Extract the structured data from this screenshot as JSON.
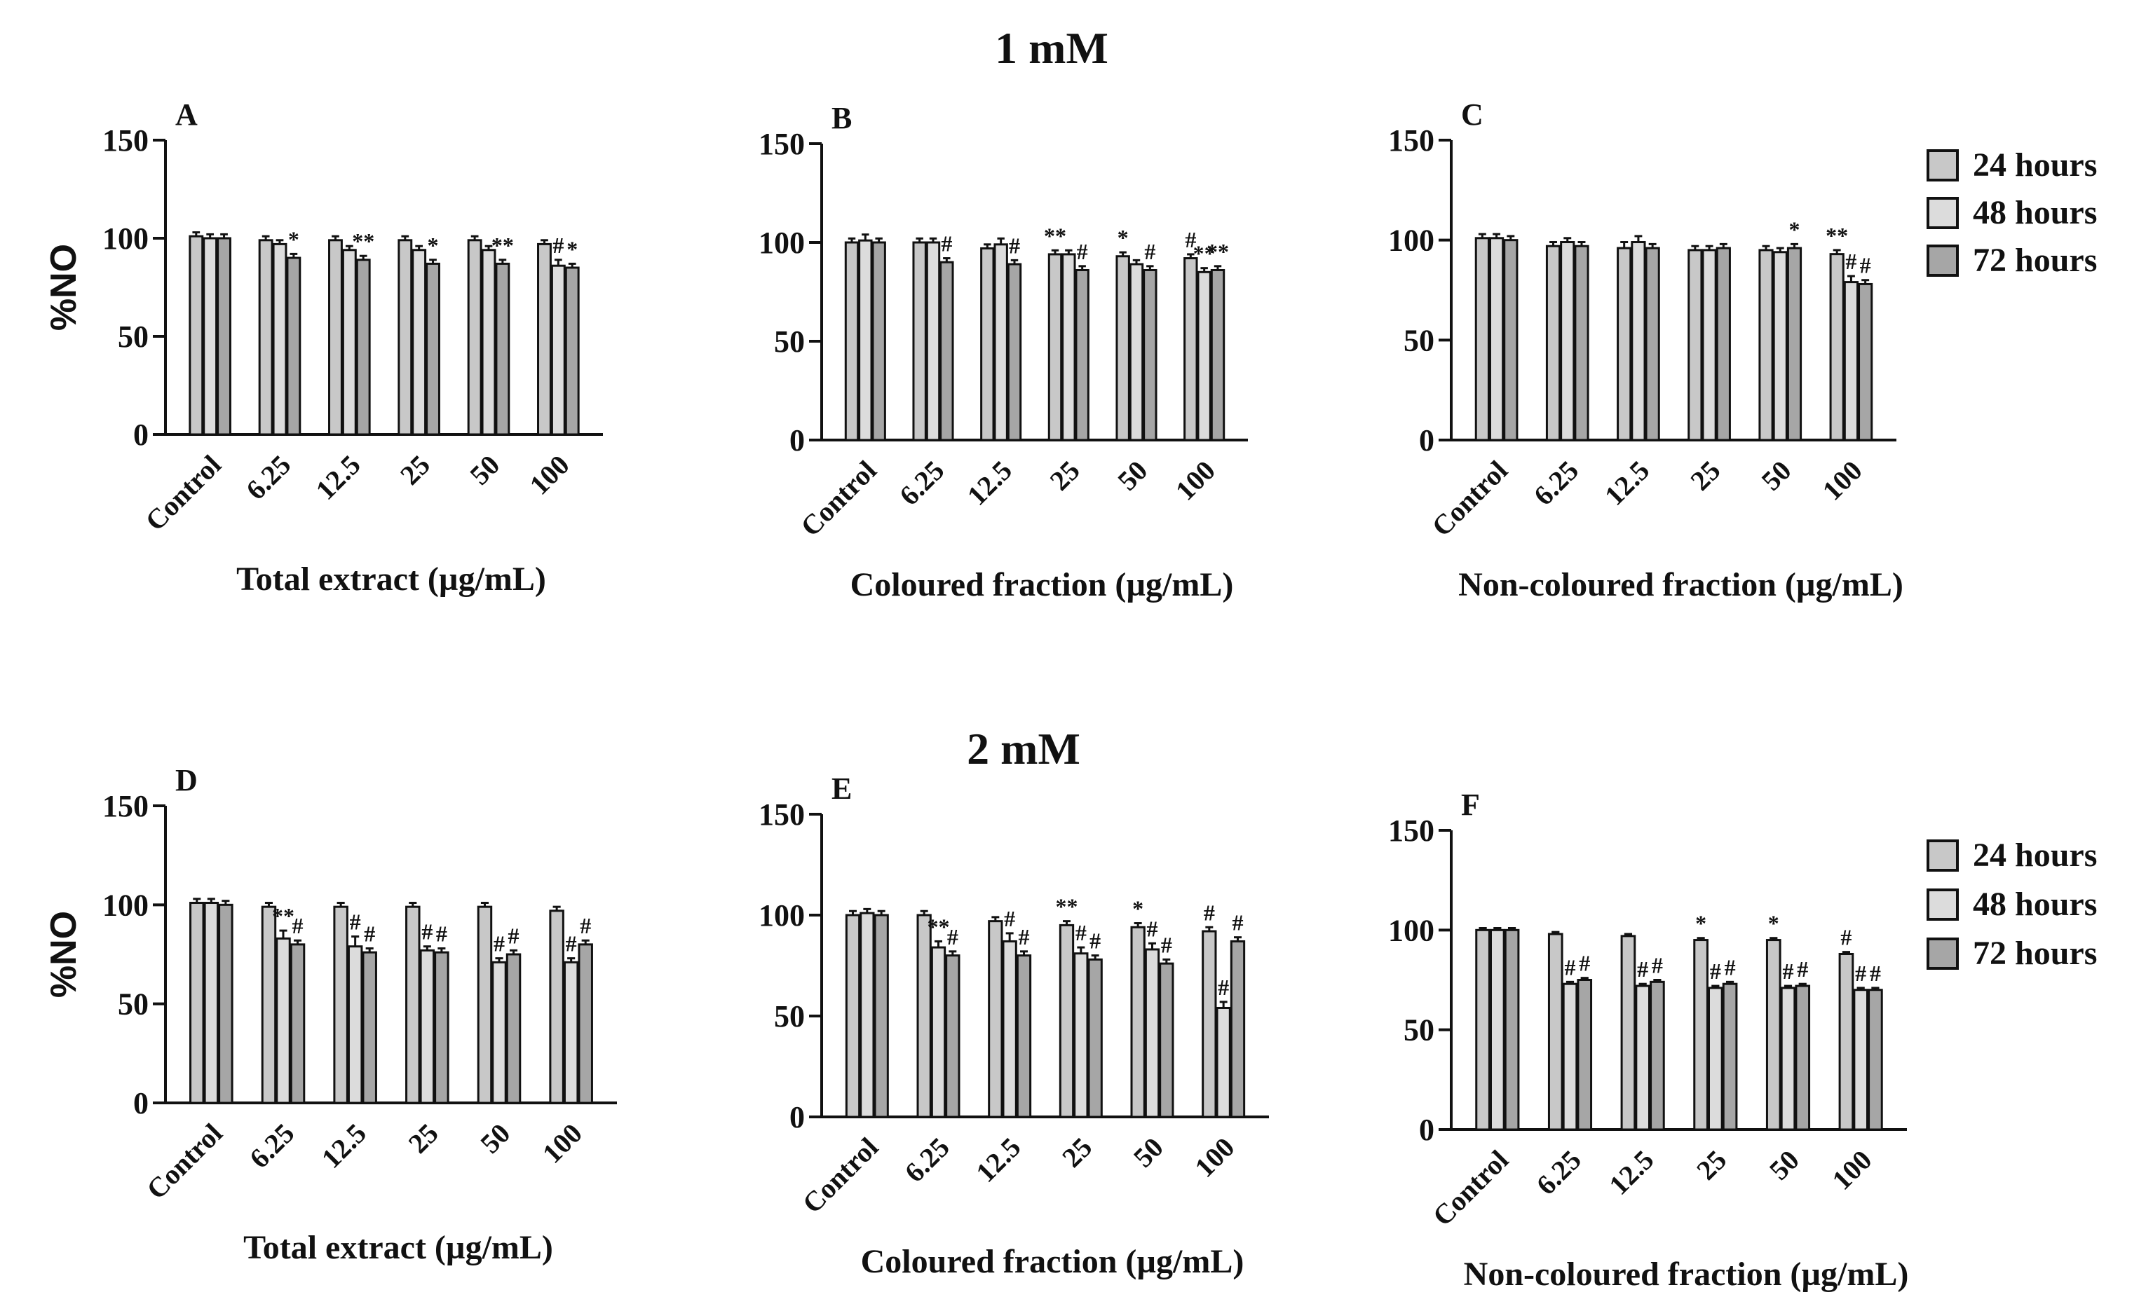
{
  "figure": {
    "group_titles": [
      "1 mM",
      "2 mM"
    ]
  },
  "legend": {
    "entries": [
      {
        "label": "24 hours",
        "color": "#c8c8c8"
      },
      {
        "label": "48 hours",
        "color": "#dcdcdc"
      },
      {
        "label": "72 hours",
        "color": "#a6a6a6"
      }
    ]
  },
  "chart_data": [
    {
      "panel": "A",
      "type": "bar",
      "xlabel": "Total extract (µg/mL)",
      "ylabel": "%NO",
      "ylim": [
        0,
        150
      ],
      "yticks": [
        0,
        50,
        100,
        150
      ],
      "categories": [
        "Control",
        "6.25",
        "12.5",
        "25",
        "50",
        "100"
      ],
      "series": [
        {
          "name": "24 hours",
          "values": [
            101,
            99,
            99,
            99,
            99,
            97
          ],
          "errors": [
            2,
            2,
            2,
            2,
            2,
            2
          ],
          "marks": [
            "",
            "",
            "",
            "",
            "",
            ""
          ]
        },
        {
          "name": "48 hours",
          "values": [
            100,
            97,
            94,
            94,
            94,
            86
          ],
          "errors": [
            2,
            2,
            2,
            2,
            2,
            3
          ],
          "marks": [
            "",
            "",
            "",
            "",
            "",
            "#"
          ]
        },
        {
          "name": "72 hours",
          "values": [
            100,
            90,
            89,
            87,
            87,
            85
          ],
          "errors": [
            2,
            2,
            2,
            2,
            2,
            2
          ],
          "marks": [
            "",
            "*",
            "**",
            "*",
            "**",
            "*"
          ]
        }
      ]
    },
    {
      "panel": "B",
      "type": "bar",
      "xlabel": "Coloured fraction (µg/mL)",
      "ylabel": "",
      "ylim": [
        0,
        150
      ],
      "yticks": [
        0,
        50,
        100,
        150
      ],
      "categories": [
        "Control",
        "6.25",
        "12.5",
        "25",
        "50",
        "100"
      ],
      "series": [
        {
          "name": "24 hours",
          "values": [
            100,
            100,
            97,
            94,
            93,
            92
          ],
          "errors": [
            2,
            2,
            2,
            2,
            2,
            2
          ],
          "marks": [
            "",
            "",
            "",
            "**",
            "*",
            "#"
          ]
        },
        {
          "name": "48 hours",
          "values": [
            101,
            100,
            99,
            94,
            89,
            85
          ],
          "errors": [
            3,
            2,
            3,
            2,
            2,
            2
          ],
          "marks": [
            "",
            "",
            "",
            "",
            "",
            "**"
          ]
        },
        {
          "name": "72 hours",
          "values": [
            100,
            90,
            89,
            86,
            86,
            86
          ],
          "errors": [
            2,
            2,
            2,
            2,
            2,
            2
          ],
          "marks": [
            "",
            "#",
            "#",
            "#",
            "#",
            "**"
          ]
        }
      ]
    },
    {
      "panel": "C",
      "type": "bar",
      "xlabel": "Non-coloured fraction (µg/mL)",
      "ylabel": "",
      "ylim": [
        0,
        150
      ],
      "yticks": [
        0,
        50,
        100,
        150
      ],
      "categories": [
        "Control",
        "6.25",
        "12.5",
        "25",
        "50",
        "100"
      ],
      "series": [
        {
          "name": "24 hours",
          "values": [
            101,
            97,
            96,
            95,
            95,
            93
          ],
          "errors": [
            2,
            2,
            3,
            2,
            2,
            2
          ],
          "marks": [
            "",
            "",
            "",
            "",
            "",
            "**"
          ]
        },
        {
          "name": "48 hours",
          "values": [
            101,
            99,
            99,
            95,
            94,
            79
          ],
          "errors": [
            2,
            2,
            3,
            2,
            2,
            3
          ],
          "marks": [
            "",
            "",
            "",
            "",
            "",
            "#"
          ]
        },
        {
          "name": "72 hours",
          "values": [
            100,
            97,
            96,
            96,
            96,
            78
          ],
          "errors": [
            2,
            2,
            2,
            2,
            2,
            2
          ],
          "marks": [
            "",
            "",
            "",
            "",
            "*",
            "#"
          ]
        }
      ]
    },
    {
      "panel": "D",
      "type": "bar",
      "xlabel": "Total extract (µg/mL)",
      "ylabel": "%NO",
      "ylim": [
        0,
        150
      ],
      "yticks": [
        0,
        50,
        100,
        150
      ],
      "categories": [
        "Control",
        "6.25",
        "12.5",
        "25",
        "50",
        "100"
      ],
      "series": [
        {
          "name": "24 hours",
          "values": [
            101,
            99,
            99,
            99,
            99,
            97
          ],
          "errors": [
            2,
            2,
            2,
            2,
            2,
            2
          ],
          "marks": [
            "",
            "",
            "",
            "",
            "",
            ""
          ]
        },
        {
          "name": "48 hours",
          "values": [
            101,
            83,
            79,
            77,
            71,
            71
          ],
          "errors": [
            2,
            4,
            5,
            2,
            2,
            2
          ],
          "marks": [
            "",
            "**",
            "#",
            "#",
            "#",
            "#"
          ]
        },
        {
          "name": "72 hours",
          "values": [
            100,
            80,
            76,
            76,
            75,
            80
          ],
          "errors": [
            2,
            2,
            2,
            2,
            2,
            2
          ],
          "marks": [
            "",
            "#",
            "#",
            "#",
            "#",
            "#"
          ]
        }
      ]
    },
    {
      "panel": "E",
      "type": "bar",
      "xlabel": "Coloured fraction (µg/mL)",
      "ylabel": "",
      "ylim": [
        0,
        150
      ],
      "yticks": [
        0,
        50,
        100,
        150
      ],
      "categories": [
        "Control",
        "6.25",
        "12.5",
        "25",
        "50",
        "100"
      ],
      "series": [
        {
          "name": "24 hours",
          "values": [
            100,
            100,
            97,
            95,
            94,
            92
          ],
          "errors": [
            2,
            2,
            2,
            2,
            2,
            2
          ],
          "marks": [
            "",
            "",
            "",
            "**",
            "*",
            "#"
          ]
        },
        {
          "name": "48 hours",
          "values": [
            101,
            84,
            87,
            81,
            83,
            54
          ],
          "errors": [
            2,
            3,
            4,
            3,
            3,
            3
          ],
          "marks": [
            "",
            "**",
            "#",
            "#",
            "#",
            "#"
          ]
        },
        {
          "name": "72 hours",
          "values": [
            100,
            80,
            80,
            78,
            76,
            87
          ],
          "errors": [
            2,
            2,
            2,
            2,
            2,
            2
          ],
          "marks": [
            "",
            "#",
            "#",
            "#",
            "#",
            "#"
          ]
        }
      ]
    },
    {
      "panel": "F",
      "type": "bar",
      "xlabel": "Non-coloured fraction (µg/mL)",
      "ylabel": "",
      "ylim": [
        0,
        150
      ],
      "yticks": [
        0,
        50,
        100,
        150
      ],
      "categories": [
        "Control",
        "6.25",
        "12.5",
        "25",
        "50",
        "100"
      ],
      "series": [
        {
          "name": "24 hours",
          "values": [
            100,
            98,
            97,
            95,
            95,
            88
          ],
          "errors": [
            1,
            1,
            1,
            1,
            1,
            1
          ],
          "marks": [
            "",
            "",
            "",
            "*",
            "*",
            "#"
          ]
        },
        {
          "name": "48 hours",
          "values": [
            100,
            73,
            72,
            71,
            71,
            70
          ],
          "errors": [
            1,
            1,
            1,
            1,
            1,
            1
          ],
          "marks": [
            "",
            "#",
            "#",
            "#",
            "#",
            "#"
          ]
        },
        {
          "name": "72 hours",
          "values": [
            100,
            75,
            74,
            73,
            72,
            70
          ],
          "errors": [
            1,
            1,
            1,
            1,
            1,
            1
          ],
          "marks": [
            "",
            "#",
            "#",
            "#",
            "#",
            "#"
          ]
        }
      ]
    }
  ]
}
